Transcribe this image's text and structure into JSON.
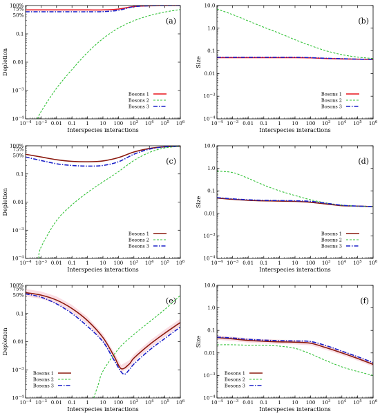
{
  "figure": {
    "xlabel": "Interspecies interactions",
    "x_tick_labels": [
      "10^-4",
      "10^-3",
      "0.01",
      "0.1",
      "1",
      "10",
      "100",
      "10^3",
      "10^4",
      "10^5",
      "10^6"
    ],
    "depletion_ylabel": "Depletion",
    "size_ylabel": "Size",
    "depletion_top_ticks": [
      "100%",
      "75%",
      "50%"
    ],
    "colors": {
      "bosons_1_ab": "#e8141c",
      "bosons_1_cdef": "#8b1a0f",
      "bosons_2": "#35c33a",
      "bosons_3": "#1a20c8",
      "shaded": "#f4b6c4"
    }
  },
  "chart_data": [
    {
      "panel": "(a)",
      "type": "line",
      "xscale": "log",
      "yscale": "log",
      "xlim": [
        0.0001,
        1000000
      ],
      "ylim": [
        0.0001,
        1
      ],
      "ylabel": "Depletion",
      "y_tick_labels": [
        "0.1",
        "0.01",
        "10^-3",
        "10^-4"
      ],
      "legend": [
        "Bosons 1",
        "Bosons 2",
        "Bosons 3"
      ],
      "legend_position": "bottom-right",
      "series": [
        {
          "name": "Bosons 1",
          "x": [
            0.0001,
            0.001,
            0.01,
            0.1,
            1,
            10,
            100,
            1000,
            10000,
            100000,
            1000000
          ],
          "y": [
            0.7,
            0.7,
            0.7,
            0.7,
            0.7,
            0.7,
            0.75,
            0.92,
            0.98,
            0.99,
            1.0
          ]
        },
        {
          "name": "Bosons 2",
          "x": [
            0.0006,
            0.001,
            0.01,
            0.1,
            1,
            10,
            100,
            1000,
            10000,
            100000,
            1000000
          ],
          "y": [
            0.0001,
            0.00018,
            0.0012,
            0.0055,
            0.022,
            0.068,
            0.16,
            0.29,
            0.44,
            0.59,
            0.72
          ]
        },
        {
          "name": "Bosons 3",
          "x": [
            0.0001,
            0.001,
            0.01,
            0.1,
            1,
            10,
            100,
            1000,
            10000,
            100000,
            1000000
          ],
          "y": [
            0.6,
            0.6,
            0.6,
            0.6,
            0.6,
            0.61,
            0.68,
            0.91,
            0.98,
            0.99,
            1.0
          ]
        }
      ]
    },
    {
      "panel": "(b)",
      "type": "line",
      "xscale": "log",
      "yscale": "log",
      "xlim": [
        0.0001,
        1000000
      ],
      "ylim": [
        0.0001,
        10
      ],
      "ylabel": "Size",
      "y_tick_labels": [
        "10.0",
        "1.0",
        "0.1",
        "0.01",
        "10^-3",
        "10^-4"
      ],
      "legend": [
        "Bosons 1",
        "Bosons 2",
        "Bosons 3"
      ],
      "legend_position": "bottom-right",
      "series": [
        {
          "name": "Bosons 1",
          "x": [
            0.0001,
            0.001,
            0.01,
            0.1,
            1,
            10,
            100,
            1000,
            10000,
            100000,
            1000000
          ],
          "y": [
            0.05,
            0.05,
            0.05,
            0.05,
            0.05,
            0.05,
            0.049,
            0.046,
            0.044,
            0.043,
            0.042
          ]
        },
        {
          "name": "Bosons 2",
          "x": [
            0.0001,
            0.001,
            0.01,
            0.1,
            1,
            10,
            100,
            1000,
            10000,
            100000,
            1000000
          ],
          "y": [
            7.0,
            4.0,
            2.1,
            1.1,
            0.6,
            0.31,
            0.17,
            0.1,
            0.068,
            0.053,
            0.046
          ]
        },
        {
          "name": "Bosons 3",
          "x": [
            0.0001,
            0.001,
            0.01,
            0.1,
            1,
            10,
            100,
            1000,
            10000,
            100000,
            1000000
          ],
          "y": [
            0.052,
            0.052,
            0.052,
            0.052,
            0.052,
            0.052,
            0.05,
            0.047,
            0.045,
            0.043,
            0.042
          ]
        }
      ]
    },
    {
      "panel": "(c)",
      "type": "line",
      "xscale": "log",
      "yscale": "log",
      "xlim": [
        0.0001,
        1000000
      ],
      "ylim": [
        0.0001,
        1
      ],
      "ylabel": "Depletion",
      "y_tick_labels": [
        "0.1",
        "0.01",
        "10^-3",
        "10^-4"
      ],
      "legend": [
        "Bosons 1",
        "Bosons 2",
        "Bosons 3"
      ],
      "legend_position": "bottom-right",
      "series": [
        {
          "name": "Bosons 1",
          "x": [
            0.0001,
            0.001,
            0.01,
            0.1,
            1,
            10,
            100,
            1000,
            10000,
            100000,
            1000000
          ],
          "y": [
            0.5,
            0.4,
            0.32,
            0.28,
            0.27,
            0.29,
            0.38,
            0.6,
            0.8,
            0.92,
            0.97
          ]
        },
        {
          "name": "Bosons 2",
          "x": [
            0.0007,
            0.001,
            0.01,
            0.1,
            1,
            10,
            100,
            1000,
            10000,
            100000,
            1000000
          ],
          "y": [
            0.0001,
            0.00025,
            0.0022,
            0.008,
            0.022,
            0.052,
            0.12,
            0.3,
            0.58,
            0.84,
            0.95
          ]
        },
        {
          "name": "Bosons 3",
          "x": [
            0.0001,
            0.001,
            0.01,
            0.1,
            1,
            10,
            100,
            1000,
            10000,
            100000,
            1000000
          ],
          "y": [
            0.4,
            0.3,
            0.23,
            0.2,
            0.19,
            0.2,
            0.27,
            0.5,
            0.76,
            0.92,
            0.98
          ]
        }
      ]
    },
    {
      "panel": "(d)",
      "type": "line",
      "xscale": "log",
      "yscale": "log",
      "xlim": [
        0.0001,
        1000000
      ],
      "ylim": [
        0.0001,
        10
      ],
      "ylabel": "Size",
      "y_tick_labels": [
        "10.0",
        "1.0",
        "0.1",
        "0.01",
        "10^-3",
        "10^-4"
      ],
      "legend": [
        "Bosons 1",
        "Bosons 2",
        "Bosons 3"
      ],
      "legend_position": "bottom-right",
      "series": [
        {
          "name": "Bosons 1",
          "x": [
            0.0001,
            0.001,
            0.01,
            0.1,
            1,
            10,
            100,
            1000,
            10000,
            100000,
            1000000
          ],
          "y": [
            0.048,
            0.042,
            0.038,
            0.036,
            0.035,
            0.034,
            0.031,
            0.026,
            0.022,
            0.021,
            0.02
          ]
        },
        {
          "name": "Bosons 2",
          "x": [
            0.0001,
            0.001,
            0.01,
            0.1,
            1,
            10,
            100,
            1000,
            10000,
            100000,
            1000000
          ],
          "y": [
            0.75,
            0.65,
            0.36,
            0.18,
            0.1,
            0.062,
            0.04,
            0.029,
            0.023,
            0.021,
            0.02
          ]
        },
        {
          "name": "Bosons 3",
          "x": [
            0.0001,
            0.001,
            0.01,
            0.1,
            1,
            10,
            100,
            1000,
            10000,
            100000,
            1000000
          ],
          "y": [
            0.05,
            0.044,
            0.04,
            0.038,
            0.037,
            0.036,
            0.034,
            0.028,
            0.023,
            0.021,
            0.02
          ]
        }
      ]
    },
    {
      "panel": "(e)",
      "type": "line",
      "xscale": "log",
      "yscale": "log",
      "xlim": [
        0.0001,
        1000000
      ],
      "ylim": [
        0.0001,
        1
      ],
      "ylabel": "Depletion",
      "y_tick_labels": [
        "0.1",
        "0.01",
        "10^-3",
        "10^-4"
      ],
      "legend": [
        "Bosons 1",
        "Bosons 2",
        "Bosons 3"
      ],
      "legend_position": "bottom-left",
      "series": [
        {
          "name": "Bosons 1",
          "x": [
            0.0001,
            0.001,
            0.01,
            0.1,
            1,
            10,
            50,
            150,
            500,
            1000,
            10000,
            100000,
            1000000
          ],
          "y": [
            0.55,
            0.45,
            0.3,
            0.15,
            0.056,
            0.014,
            0.0032,
            0.0011,
            0.0016,
            0.0026,
            0.0078,
            0.02,
            0.048
          ]
        },
        {
          "name": "Bosons 2",
          "x": [
            2.5,
            5,
            10,
            100,
            1000,
            10000,
            100000,
            1000000
          ],
          "y": [
            0.0001,
            0.0003,
            0.0009,
            0.0055,
            0.018,
            0.05,
            0.14,
            0.44
          ]
        },
        {
          "name": "Bosons 3",
          "x": [
            0.0001,
            0.001,
            0.01,
            0.1,
            1,
            10,
            50,
            200,
            500,
            1000,
            10000,
            100000,
            1000000
          ],
          "y": [
            0.5,
            0.38,
            0.22,
            0.1,
            0.035,
            0.01,
            0.0023,
            0.00072,
            0.001,
            0.0016,
            0.005,
            0.013,
            0.033
          ]
        }
      ]
    },
    {
      "panel": "(f)",
      "type": "line",
      "xscale": "log",
      "yscale": "log",
      "xlim": [
        0.0001,
        1000000
      ],
      "ylim": [
        0.0001,
        10
      ],
      "ylabel": "Size",
      "y_tick_labels": [
        "10.0",
        "1.0",
        "0.1",
        "0.01",
        "10^-3",
        "10^-4"
      ],
      "legend": [
        "Bosons 1",
        "Bosons 2",
        "Bosons 3"
      ],
      "legend_position": "bottom-left",
      "series": [
        {
          "name": "Bosons 1",
          "x": [
            0.0001,
            0.001,
            0.01,
            0.1,
            1,
            10,
            100,
            1000,
            10000,
            100000,
            1000000
          ],
          "y": [
            0.048,
            0.042,
            0.036,
            0.033,
            0.031,
            0.03,
            0.027,
            0.017,
            0.01,
            0.0057,
            0.0031
          ]
        },
        {
          "name": "Bosons 2",
          "x": [
            0.0001,
            0.001,
            0.01,
            0.1,
            1,
            10,
            100,
            1000,
            10000,
            100000,
            1000000
          ],
          "y": [
            0.023,
            0.023,
            0.022,
            0.022,
            0.02,
            0.016,
            0.009,
            0.0045,
            0.0024,
            0.0015,
            0.001
          ]
        },
        {
          "name": "Bosons 3",
          "x": [
            0.0001,
            0.001,
            0.01,
            0.1,
            1,
            10,
            100,
            1000,
            10000,
            100000,
            1000000
          ],
          "y": [
            0.05,
            0.046,
            0.04,
            0.037,
            0.035,
            0.034,
            0.032,
            0.021,
            0.012,
            0.0068,
            0.0037
          ]
        }
      ]
    }
  ]
}
